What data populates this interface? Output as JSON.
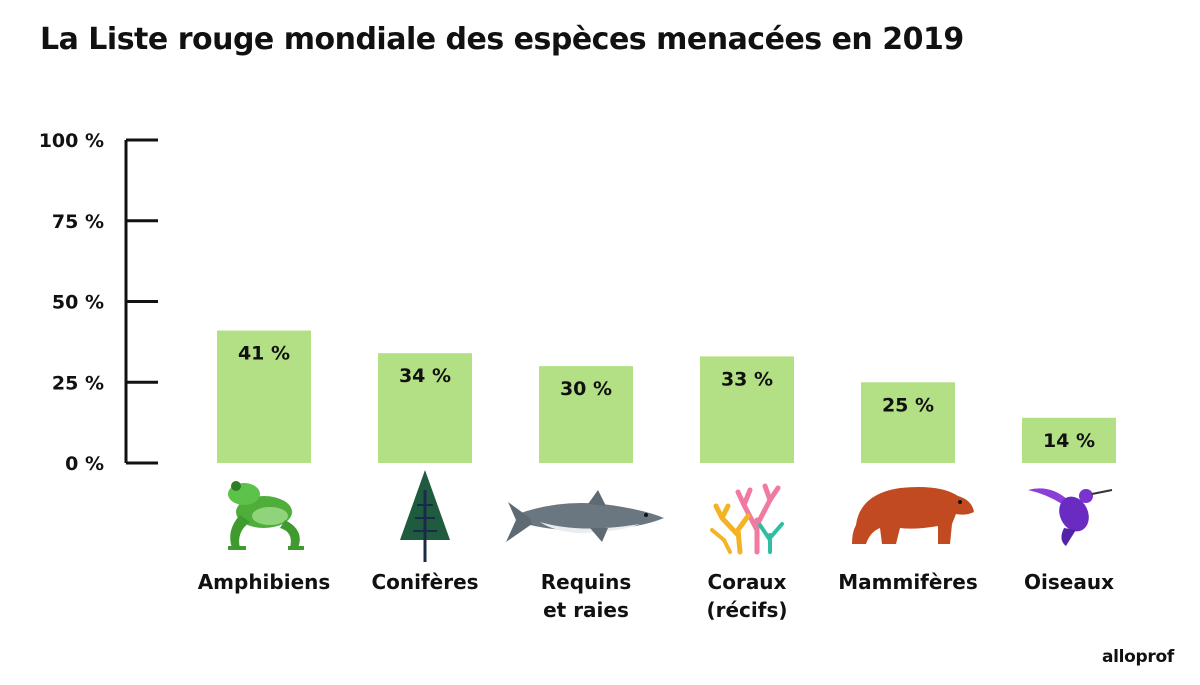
{
  "title": "La Liste rouge mondiale des espèces menacées en 2019",
  "brand": "alloprof",
  "colors": {
    "bar": "#b3e084",
    "axis": "#111111",
    "text": "#111111"
  },
  "chart_data": {
    "type": "bar",
    "title": "La Liste rouge mondiale des espèces menacées en 2019",
    "xlabel": "",
    "ylabel": "",
    "ylim": [
      0,
      100
    ],
    "yticks": [
      0,
      25,
      50,
      75,
      100
    ],
    "ytick_labels": [
      "0 %",
      "25 %",
      "50 %",
      "75 %",
      "100 %"
    ],
    "categories": [
      [
        "Amphibiens"
      ],
      [
        "Conifères"
      ],
      [
        "Requins",
        "et raies"
      ],
      [
        "Coraux",
        "(récifs)"
      ],
      [
        "Mammifères"
      ],
      [
        "Oiseaux"
      ]
    ],
    "icons": [
      "frog-icon",
      "conifer-tree-icon",
      "shark-icon",
      "coral-icon",
      "bear-icon",
      "hummingbird-icon"
    ],
    "values": [
      41,
      34,
      30,
      33,
      25,
      14
    ],
    "value_labels": [
      "41 %",
      "34 %",
      "30 %",
      "33 %",
      "25 %",
      "14 %"
    ]
  }
}
